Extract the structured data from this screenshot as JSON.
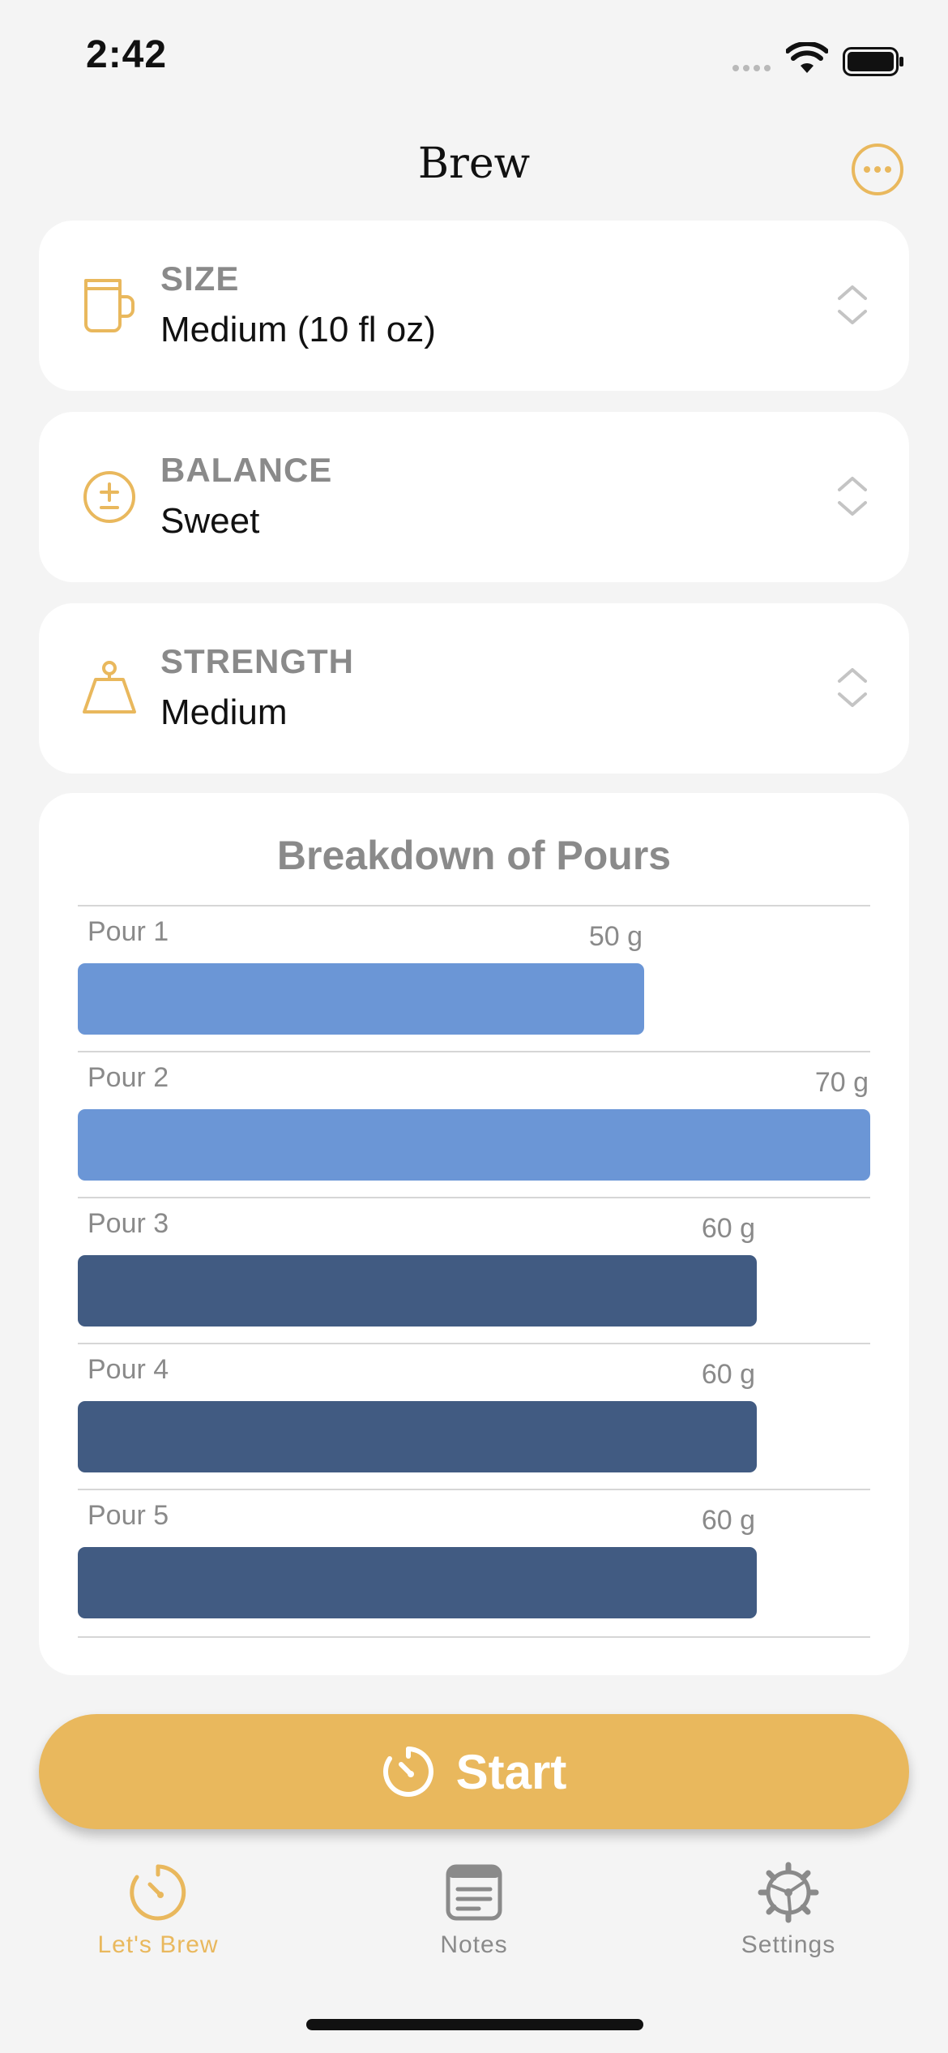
{
  "status_bar": {
    "time": "2:42"
  },
  "header": {
    "title": "Brew",
    "more_icon": "ellipsis-circle-icon"
  },
  "settings": [
    {
      "label": "SIZE",
      "value": "Medium (10 fl oz)",
      "icon": "mug-icon"
    },
    {
      "label": "BALANCE",
      "value": "Sweet",
      "icon": "plus-minus-icon"
    },
    {
      "label": "STRENGTH",
      "value": "Medium",
      "icon": "weight-icon"
    }
  ],
  "breakdown": {
    "title": "Breakdown of Pours",
    "chart_data": {
      "type": "bar",
      "orientation": "horizontal",
      "categories": [
        "Pour 1",
        "Pour 2",
        "Pour 3",
        "Pour 4",
        "Pour 5"
      ],
      "values": [
        50,
        70,
        60,
        60,
        60
      ],
      "value_labels": [
        "50 g",
        "70 g",
        "60 g",
        "60 g",
        "60 g"
      ],
      "unit": "g",
      "xlim": [
        0,
        70
      ],
      "bar_colors": [
        "#6b96d6",
        "#6b96d6",
        "#415b82",
        "#415b82",
        "#415b82"
      ]
    }
  },
  "start_button": {
    "label": "Start",
    "icon": "timer-icon"
  },
  "tabs": [
    {
      "label": "Let's Brew",
      "icon": "timer-icon",
      "active": true
    },
    {
      "label": "Notes",
      "icon": "notes-icon",
      "active": false
    },
    {
      "label": "Settings",
      "icon": "gear-icon",
      "active": false
    }
  ],
  "colors": {
    "accent": "#e9b85d",
    "tab_inactive": "#8a8a8a",
    "bar_light": "#6b96d6",
    "bar_dark": "#415b82"
  }
}
